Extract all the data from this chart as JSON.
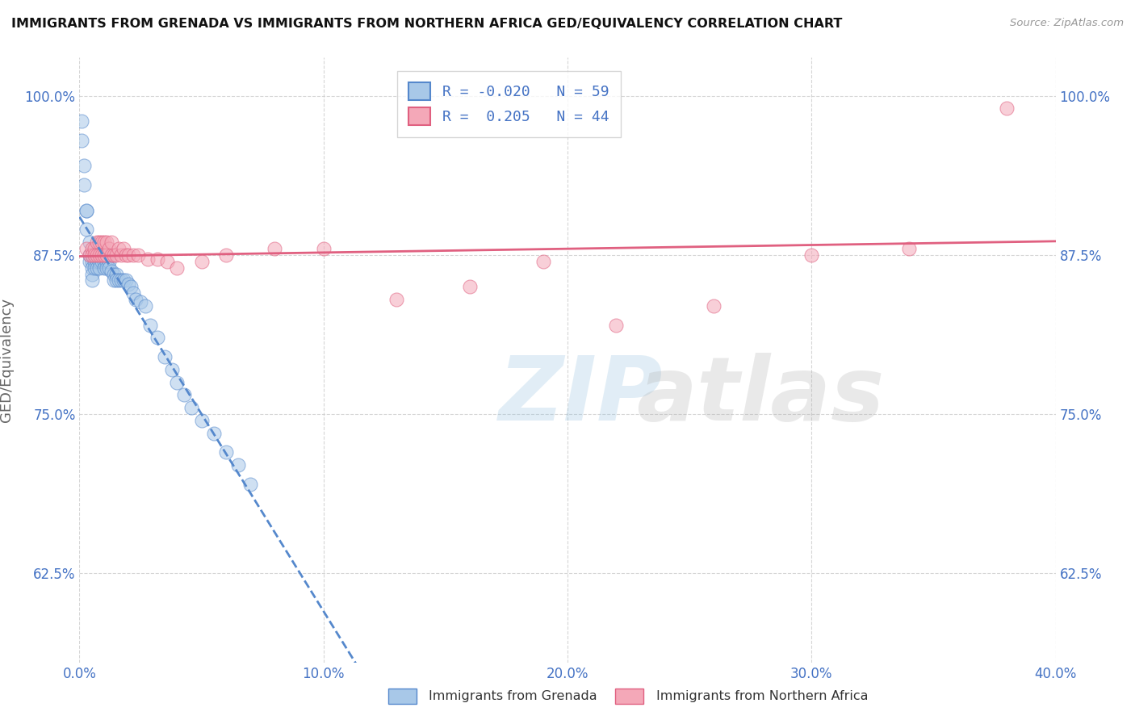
{
  "title": "IMMIGRANTS FROM GRENADA VS IMMIGRANTS FROM NORTHERN AFRICA GED/EQUIVALENCY CORRELATION CHART",
  "source": "Source: ZipAtlas.com",
  "ylabel": "GED/Equivalency",
  "x_min": 0.0,
  "x_max": 0.4,
  "y_min": 0.555,
  "y_max": 1.03,
  "yticks": [
    0.625,
    0.75,
    0.875,
    1.0
  ],
  "ytick_labels": [
    "62.5%",
    "75.0%",
    "87.5%",
    "100.0%"
  ],
  "xticks": [
    0.0,
    0.1,
    0.2,
    0.3,
    0.4
  ],
  "xtick_labels": [
    "0.0%",
    "10.0%",
    "20.0%",
    "30.0%",
    "40.0%"
  ],
  "legend_label1": "Immigrants from Grenada",
  "legend_label2": "Immigrants from Northern Africa",
  "R1": -0.02,
  "N1": 59,
  "R2": 0.205,
  "N2": 44,
  "color_blue": "#a8c8e8",
  "color_pink": "#f4a8b8",
  "line_color_blue": "#5588cc",
  "line_color_pink": "#e06080",
  "text_color_blue": "#4472c4",
  "background_color": "#ffffff",
  "grid_color": "#cccccc",
  "scatter_blue_x": [
    0.001,
    0.001,
    0.002,
    0.002,
    0.003,
    0.003,
    0.003,
    0.004,
    0.004,
    0.004,
    0.005,
    0.005,
    0.005,
    0.005,
    0.006,
    0.006,
    0.006,
    0.007,
    0.007,
    0.007,
    0.008,
    0.008,
    0.008,
    0.009,
    0.009,
    0.01,
    0.01,
    0.01,
    0.011,
    0.011,
    0.012,
    0.012,
    0.013,
    0.014,
    0.014,
    0.015,
    0.015,
    0.016,
    0.017,
    0.018,
    0.019,
    0.02,
    0.021,
    0.022,
    0.023,
    0.025,
    0.027,
    0.029,
    0.032,
    0.035,
    0.038,
    0.04,
    0.043,
    0.046,
    0.05,
    0.055,
    0.06,
    0.065,
    0.07
  ],
  "scatter_blue_y": [
    0.98,
    0.965,
    0.945,
    0.93,
    0.91,
    0.91,
    0.895,
    0.885,
    0.875,
    0.87,
    0.87,
    0.865,
    0.86,
    0.855,
    0.875,
    0.87,
    0.865,
    0.875,
    0.87,
    0.865,
    0.875,
    0.87,
    0.865,
    0.875,
    0.87,
    0.875,
    0.87,
    0.865,
    0.87,
    0.865,
    0.87,
    0.865,
    0.862,
    0.86,
    0.855,
    0.86,
    0.855,
    0.855,
    0.855,
    0.855,
    0.855,
    0.852,
    0.85,
    0.845,
    0.84,
    0.838,
    0.835,
    0.82,
    0.81,
    0.795,
    0.785,
    0.775,
    0.765,
    0.755,
    0.745,
    0.735,
    0.72,
    0.71,
    0.695
  ],
  "scatter_pink_x": [
    0.003,
    0.004,
    0.005,
    0.005,
    0.006,
    0.006,
    0.007,
    0.007,
    0.008,
    0.008,
    0.009,
    0.009,
    0.01,
    0.01,
    0.011,
    0.011,
    0.012,
    0.013,
    0.013,
    0.014,
    0.015,
    0.016,
    0.017,
    0.018,
    0.019,
    0.02,
    0.022,
    0.024,
    0.028,
    0.032,
    0.036,
    0.04,
    0.05,
    0.06,
    0.08,
    0.1,
    0.13,
    0.16,
    0.19,
    0.22,
    0.26,
    0.3,
    0.34,
    0.38
  ],
  "scatter_pink_y": [
    0.88,
    0.875,
    0.88,
    0.875,
    0.88,
    0.875,
    0.885,
    0.875,
    0.885,
    0.875,
    0.885,
    0.875,
    0.885,
    0.875,
    0.885,
    0.875,
    0.88,
    0.875,
    0.885,
    0.875,
    0.875,
    0.88,
    0.875,
    0.88,
    0.875,
    0.875,
    0.875,
    0.875,
    0.872,
    0.872,
    0.87,
    0.865,
    0.87,
    0.875,
    0.88,
    0.88,
    0.84,
    0.85,
    0.87,
    0.82,
    0.835,
    0.875,
    0.88,
    0.99
  ]
}
